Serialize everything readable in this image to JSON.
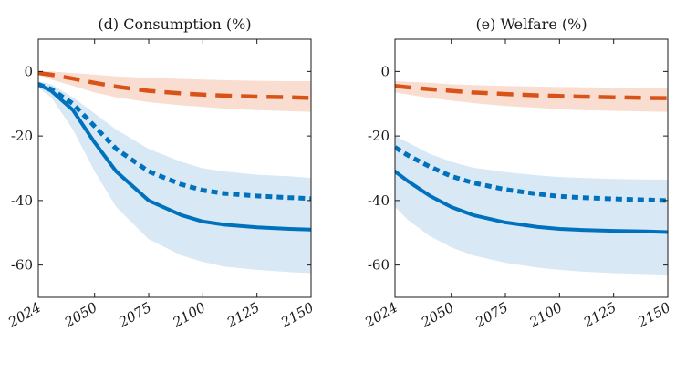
{
  "chart_data": [
    {
      "type": "line",
      "title": "(d) Consumption (%)",
      "xlabel": "",
      "ylabel": "",
      "xlim": [
        2024,
        2150
      ],
      "ylim": [
        -70,
        10
      ],
      "xticks": [
        2024,
        2050,
        2075,
        2100,
        2125,
        2150
      ],
      "yticks": [
        0,
        -20,
        -40,
        -60
      ],
      "grid": false,
      "x": [
        2024,
        2030,
        2040,
        2050,
        2060,
        2075,
        2090,
        2100,
        2110,
        2125,
        2140,
        2150
      ],
      "series": [
        {
          "style": "dashed",
          "color": "#d95319",
          "values": [
            -0.5,
            -1,
            -2.2,
            -3.5,
            -4.7,
            -6,
            -6.8,
            -7.2,
            -7.5,
            -7.8,
            -8,
            -8.2
          ]
        },
        {
          "style": "solid",
          "color": "#0072bd",
          "values": [
            -4,
            -6,
            -12,
            -22,
            -31,
            -40,
            -44.5,
            -46.5,
            -47.5,
            -48.3,
            -48.8,
            -49
          ]
        },
        {
          "style": "dotted",
          "color": "#0072bd",
          "values": [
            -4,
            -5.5,
            -10,
            -17,
            -24,
            -31,
            -35,
            -36.8,
            -37.8,
            -38.6,
            -39.1,
            -39.4
          ]
        }
      ],
      "bands": [
        {
          "color": "#f9ddd1",
          "upper": [
            0,
            0,
            -0.5,
            -1,
            -1.5,
            -2,
            -2.3,
            -2.5,
            -2.7,
            -2.9,
            -3,
            -3
          ],
          "lower": [
            -1,
            -2.5,
            -4.5,
            -6.5,
            -8,
            -9.5,
            -10.5,
            -11,
            -11.5,
            -12,
            -12.3,
            -12.5
          ]
        },
        {
          "color": "#d9e8f5",
          "upper": [
            -3,
            -4,
            -8,
            -13,
            -18,
            -24,
            -28,
            -30,
            -31,
            -32,
            -32.5,
            -33
          ],
          "lower": [
            -5,
            -8,
            -18,
            -31,
            -42,
            -52,
            -57,
            -59,
            -60.5,
            -61.5,
            -62.2,
            -62.5
          ]
        }
      ]
    },
    {
      "type": "line",
      "title": "(e) Welfare (%)",
      "xlabel": "",
      "ylabel": "",
      "xlim": [
        2024,
        2150
      ],
      "ylim": [
        -70,
        10
      ],
      "xticks": [
        2024,
        2050,
        2075,
        2100,
        2125,
        2150
      ],
      "yticks": [
        0,
        -20,
        -40,
        -60
      ],
      "grid": false,
      "x": [
        2024,
        2030,
        2040,
        2050,
        2060,
        2075,
        2090,
        2100,
        2110,
        2125,
        2140,
        2150
      ],
      "series": [
        {
          "style": "dashed",
          "color": "#d95319",
          "values": [
            -4.5,
            -4.9,
            -5.5,
            -6,
            -6.5,
            -7,
            -7.4,
            -7.6,
            -7.8,
            -8,
            -8.2,
            -8.3
          ]
        },
        {
          "style": "solid",
          "color": "#0072bd",
          "values": [
            -31,
            -34,
            -38.5,
            -42,
            -44.5,
            -46.8,
            -48.2,
            -48.8,
            -49.1,
            -49.4,
            -49.6,
            -49.8
          ]
        },
        {
          "style": "dotted",
          "color": "#0072bd",
          "values": [
            -23.5,
            -26,
            -29.5,
            -32.5,
            -34.5,
            -36.6,
            -38,
            -38.7,
            -39.1,
            -39.5,
            -39.8,
            -40
          ]
        }
      ],
      "bands": [
        {
          "color": "#f9ddd1",
          "upper": [
            -3,
            -3.2,
            -3.5,
            -4,
            -4.2,
            -4.5,
            -4.7,
            -4.8,
            -4.9,
            -5,
            -5,
            -5
          ],
          "lower": [
            -6.5,
            -7.2,
            -8.2,
            -9,
            -9.8,
            -10.7,
            -11.3,
            -11.7,
            -12,
            -12.2,
            -12.4,
            -12.5
          ]
        },
        {
          "color": "#d9e8f5",
          "upper": [
            -20,
            -22,
            -25.5,
            -28,
            -29.8,
            -31.2,
            -32.2,
            -32.7,
            -33,
            -33.3,
            -33.5,
            -33.5
          ]
        },
        {
          "color": "#d9e8f5",
          "upper": [
            -20,
            -22,
            -25.5,
            -28,
            -29.8,
            -31.2,
            -32.2,
            -32.7,
            -33,
            -33.3,
            -33.5,
            -33.5
          ],
          "lower": [
            -42,
            -46,
            -51,
            -54.5,
            -57,
            -59.3,
            -60.8,
            -61.5,
            -62,
            -62.5,
            -62.8,
            -63
          ]
        }
      ]
    }
  ]
}
